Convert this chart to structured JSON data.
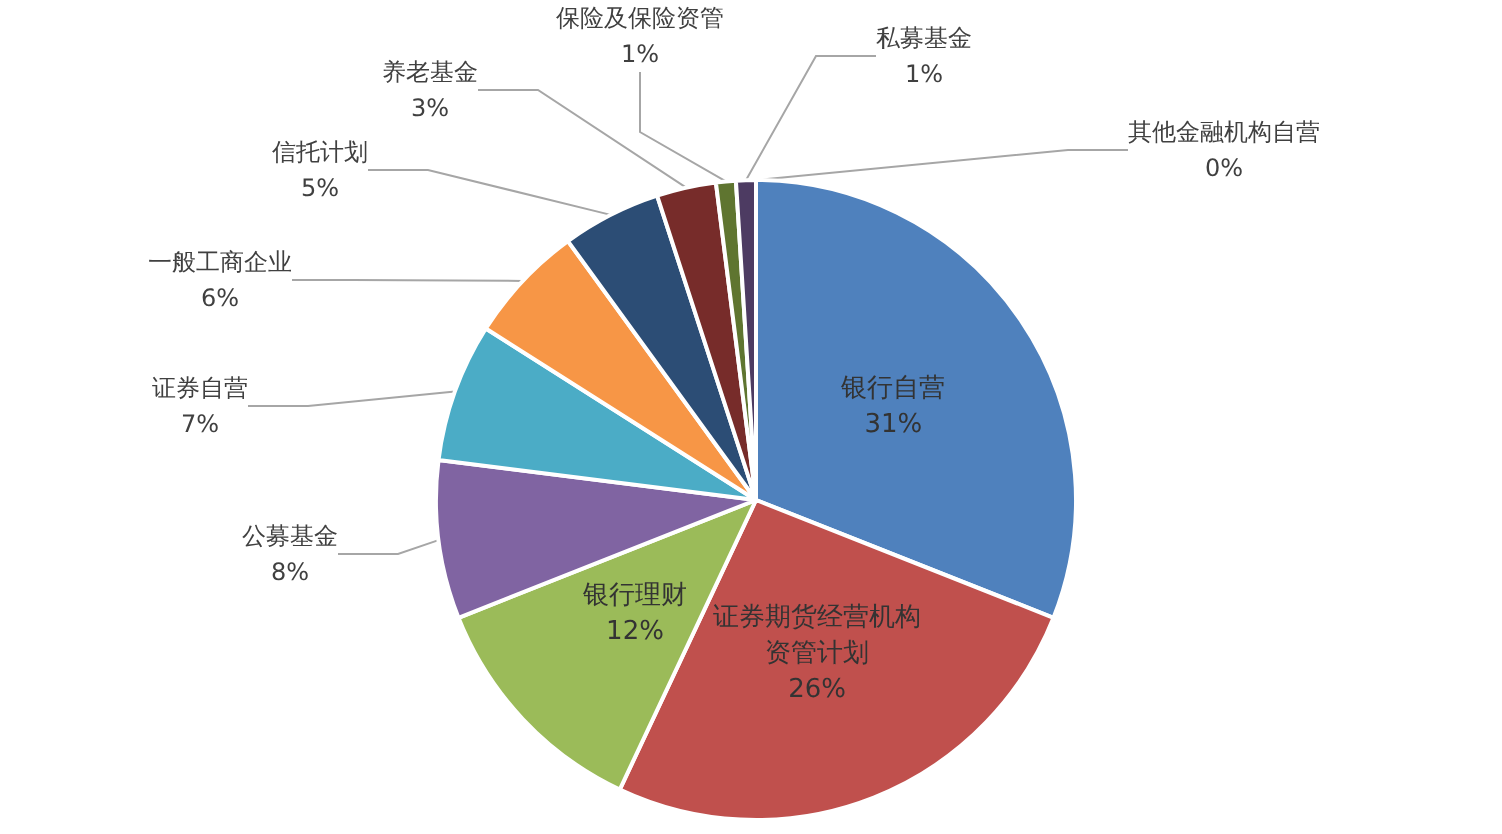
{
  "chart_data": {
    "type": "pie",
    "categories": [
      "银行自营",
      "证券期货经营机构资管计划",
      "银行理财",
      "公募基金",
      "证券自营",
      "一般工商企业",
      "信托计划",
      "养老基金",
      "保险及保险资管",
      "私募基金",
      "其他金融机构自营"
    ],
    "values": [
      31,
      26,
      12,
      8,
      7,
      6,
      5,
      3,
      1,
      1,
      0
    ],
    "value_labels": [
      "31%",
      "26%",
      "12%",
      "8%",
      "7%",
      "6%",
      "5%",
      "3%",
      "1%",
      "1%",
      "0%"
    ],
    "colors": [
      "#4f81bd",
      "#c0504d",
      "#9bbb59",
      "#8064a2",
      "#4bacc6",
      "#f79646",
      "#2c4d75",
      "#772c2a",
      "#5f7530",
      "#4d3b62",
      "#276a7c"
    ],
    "legend": false
  }
}
